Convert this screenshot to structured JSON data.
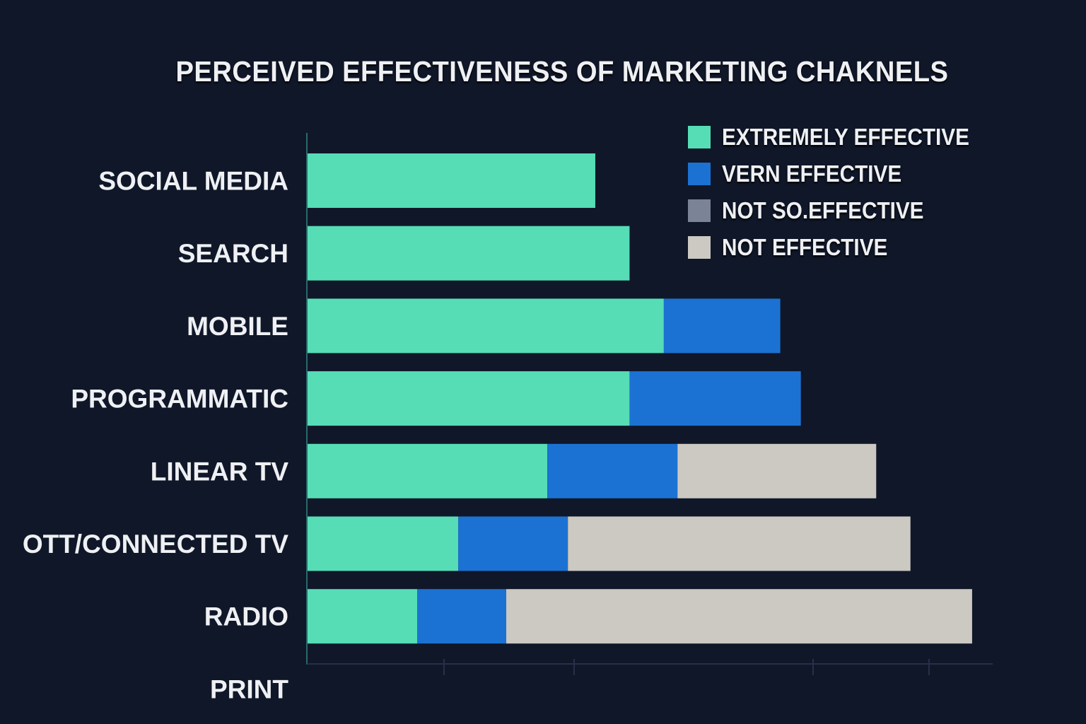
{
  "chart_data": {
    "type": "bar",
    "orientation": "horizontal",
    "stacked": true,
    "title": "PERCEIVED EFFECTIVENESS OF MARKETING CHAKNELS",
    "xlabel": "",
    "ylabel": "",
    "xlim": [
      0,
      100
    ],
    "grid": false,
    "legend_position": "top-right",
    "categories": [
      "SOCIAL MEDIA",
      "SEARCH",
      "MOBILE",
      "PROGRAMMATIC",
      "LINEAR TV",
      "OTT/CONNECTED TV",
      "RADIO",
      "PRINT"
    ],
    "series": [
      {
        "name": "EXTREMELY EFFECTIVE",
        "color": "#56DDB6",
        "values": [
          42,
          47,
          52,
          47,
          35,
          22,
          16,
          null
        ]
      },
      {
        "name": "VERN EFFECTIVE",
        "color": "#1C72D2",
        "values": [
          0,
          0,
          17,
          25,
          19,
          16,
          13,
          null
        ]
      },
      {
        "name": "NOT SO.EFFECTIVE",
        "color": "#7A8496",
        "values": [
          0,
          0,
          0,
          0,
          0,
          0,
          0,
          null
        ]
      },
      {
        "name": "NOT EFFECTIVE",
        "color": "#CBC9C2",
        "values": [
          0,
          0,
          0,
          0,
          29,
          50,
          68,
          null
        ]
      }
    ]
  }
}
